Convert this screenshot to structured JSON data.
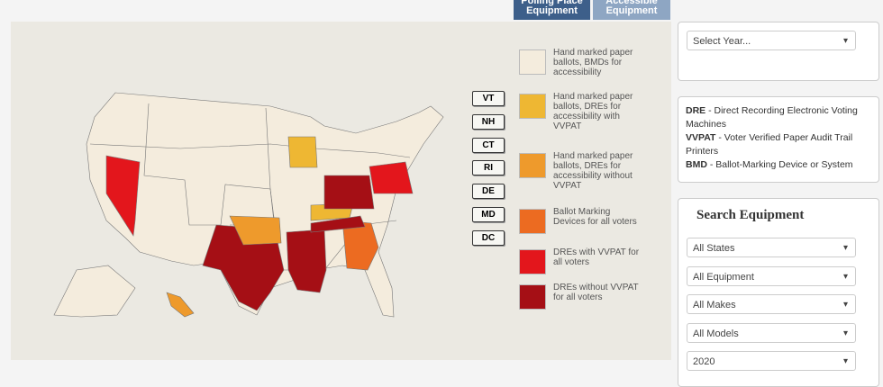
{
  "tabs": [
    "Polling Place Equipment",
    "Accessible Equipment"
  ],
  "legend": [
    {
      "label": "Hand marked paper ballots, BMDs for accessibility",
      "color": "#f4ecdd"
    },
    {
      "label": "Hand marked paper ballots, DREs for accessibility with VVPAT",
      "color": "#eeb733"
    },
    {
      "label": "Hand marked paper ballots, DREs for accessibility without VVPAT",
      "color": "#ee9a2c"
    },
    {
      "label": "Ballot Marking Devices for all voters",
      "color": "#ec6b21"
    },
    {
      "label": "DREs with VVPAT for all voters",
      "color": "#e3161c"
    },
    {
      "label": "DREs without VVPAT for all voters",
      "color": "#a50f15"
    }
  ],
  "state_buttons": [
    "VT",
    "NH",
    "CT",
    "RI",
    "DE",
    "MD",
    "DC"
  ],
  "year_select": "Select Year...",
  "definitions": [
    {
      "term": "DRE",
      "text": "- Direct Recording Electronic Voting Machines"
    },
    {
      "term": "VVPAT",
      "text": "- Voter Verified Paper Audit Trail Printers"
    },
    {
      "term": "BMD",
      "text": "- Ballot-Marking Device or System"
    }
  ],
  "search": {
    "title": "Search Equipment",
    "filters": [
      "All States",
      "All Equipment",
      "All Makes",
      "All Models",
      "2020"
    ]
  }
}
